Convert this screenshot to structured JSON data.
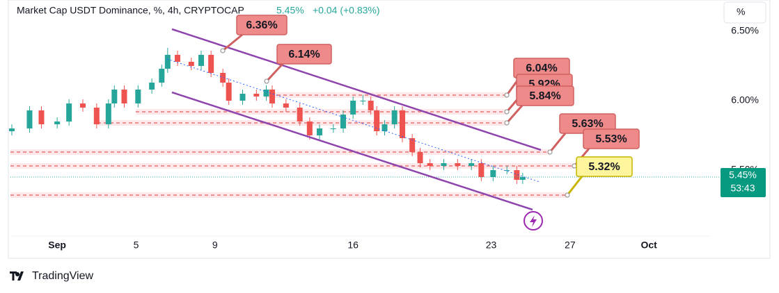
{
  "chart_data": {
    "type": "candlestick",
    "title": "Market Cap USDT Dominance, %, 4h, CRYPTOCAP",
    "last_price_label": "5.45%",
    "change_label": "+0.04 (+0.83%)",
    "countdown": "53:43",
    "unit_button": "%",
    "brand": "TradingView",
    "x": [
      -1.3,
      -0.4,
      0.2,
      1,
      1.6,
      2.3,
      3,
      3.6,
      3.9,
      4.4,
      5.1,
      5.8,
      6.3,
      6.6,
      7.1,
      7.8,
      8.3,
      8.8,
      9.4,
      9.7,
      10.4,
      11.1,
      11.6,
      11.9,
      12.6,
      13.3,
      13.8,
      14.3,
      15,
      15.5,
      16,
      16.5,
      16.9,
      17.2,
      17.6,
      18.1,
      18.5,
      19,
      19.4,
      19.9,
      20.6,
      21.3,
      22,
      22.5,
      23.1,
      23.8,
      24.3,
      24.6
    ],
    "open": [
      5.78,
      5.8,
      5.93,
      5.83,
      5.85,
      5.98,
      5.95,
      5.83,
      5.98,
      6.08,
      5.98,
      6.08,
      6.13,
      6.23,
      6.33,
      6.28,
      6.25,
      6.33,
      6.2,
      6.13,
      6.0,
      6.05,
      6.03,
      6.08,
      5.98,
      5.95,
      5.85,
      5.75,
      5.8,
      5.8,
      5.9,
      6.0,
      6.0,
      5.93,
      5.78,
      5.83,
      5.93,
      5.73,
      5.63,
      5.55,
      5.53,
      5.55,
      5.53,
      5.55,
      5.45,
      5.5,
      5.5,
      5.43
    ],
    "high": [
      5.83,
      5.96,
      5.96,
      5.88,
      6.01,
      6.01,
      5.98,
      6.01,
      6.11,
      6.11,
      6.11,
      6.16,
      6.26,
      6.38,
      6.36,
      6.31,
      6.36,
      6.36,
      6.23,
      6.16,
      6.08,
      6.08,
      6.11,
      6.11,
      6.01,
      5.98,
      5.88,
      5.83,
      5.83,
      5.93,
      6.03,
      6.04,
      6.03,
      5.96,
      5.86,
      5.96,
      5.96,
      5.76,
      5.66,
      5.58,
      5.58,
      5.58,
      5.58,
      5.58,
      5.53,
      5.53,
      5.53,
      5.48
    ],
    "low": [
      5.75,
      5.77,
      5.8,
      5.8,
      5.82,
      5.92,
      5.8,
      5.8,
      5.95,
      5.95,
      5.95,
      6.05,
      6.1,
      6.2,
      6.25,
      6.22,
      6.22,
      6.17,
      6.1,
      5.97,
      5.97,
      6.0,
      6.0,
      5.95,
      5.92,
      5.82,
      5.72,
      5.72,
      5.77,
      5.77,
      5.87,
      5.97,
      5.9,
      5.75,
      5.75,
      5.8,
      5.7,
      5.6,
      5.52,
      5.5,
      5.5,
      5.5,
      5.5,
      5.42,
      5.42,
      5.47,
      5.4,
      5.4
    ],
    "close": [
      5.8,
      5.93,
      5.83,
      5.85,
      5.98,
      5.95,
      5.83,
      5.98,
      6.08,
      5.98,
      6.08,
      6.13,
      6.23,
      6.33,
      6.28,
      6.25,
      6.33,
      6.2,
      6.13,
      6.0,
      6.05,
      6.03,
      6.08,
      5.98,
      5.95,
      5.85,
      5.75,
      5.8,
      5.8,
      5.9,
      6.0,
      6.0,
      5.93,
      5.78,
      5.83,
      5.93,
      5.73,
      5.63,
      5.55,
      5.53,
      5.55,
      5.53,
      5.55,
      5.45,
      5.5,
      5.5,
      5.43,
      5.45
    ],
    "up_color": "#26a69a",
    "down_color": "#ef5350",
    "xlim": [
      -1.37,
      34.1
    ],
    "xticks": [
      {
        "value": 1,
        "label": "Sep"
      },
      5,
      9,
      16,
      23,
      27,
      {
        "value": 31,
        "label": "Oct"
      }
    ],
    "ylim": [
      5.025,
      6.725
    ],
    "yticks": [
      {
        "value": 6.5,
        "label": "6.50%"
      },
      {
        "value": 6.0,
        "label": "6.00%"
      },
      {
        "value": 5.5,
        "label": "5.50%"
      }
    ],
    "annotations": {
      "values": [
        6.36,
        6.14,
        6.04,
        5.92,
        5.84,
        5.63,
        5.53,
        5.32
      ],
      "value_labels": [
        "6.36%",
        "6.14%",
        "6.04%",
        "5.92%",
        "5.84%",
        "5.63%",
        "5.53%",
        "5.32%"
      ]
    }
  }
}
